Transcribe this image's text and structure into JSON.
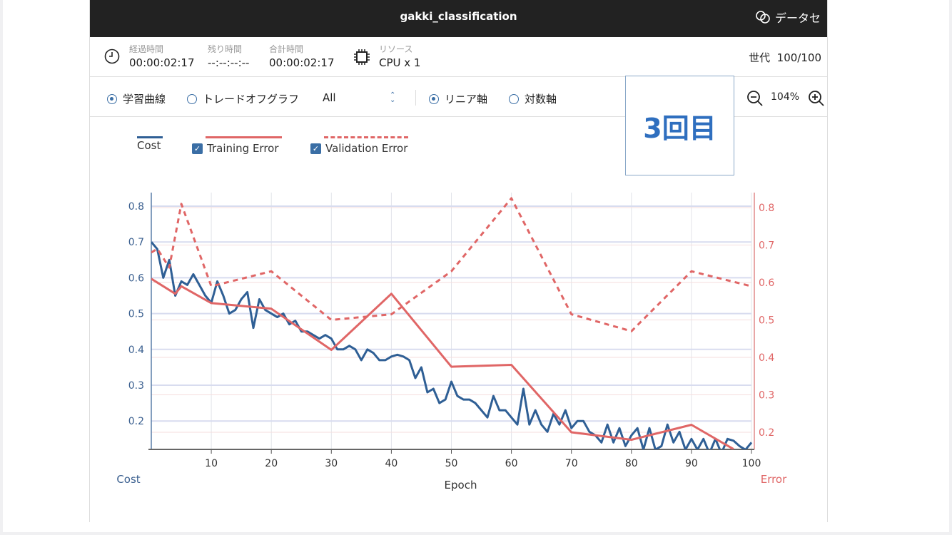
{
  "window": {
    "title": "gakki_classification",
    "dataset_label": "データセ"
  },
  "status": {
    "elapsed_label": "経過時間",
    "elapsed": "00:00:02:17",
    "remaining_label": "残り時間",
    "remaining": "--:--:--:--",
    "total_label": "合計時間",
    "total": "00:00:02:17",
    "resource_label": "リソース",
    "resource": "CPU x 1",
    "generation_label": "世代",
    "generation": "100/100"
  },
  "toolbar": {
    "learning_curve": "学習曲線",
    "tradeoff": "トレードオフグラフ",
    "select_value": "All",
    "linear": "リニア軸",
    "log": "対数軸",
    "zoom": "104%"
  },
  "badge": "3回目",
  "legend": {
    "cost": "Cost",
    "training": "Training Error",
    "validation": "Validation Error"
  },
  "colors": {
    "cost": "#2f5f95",
    "error": "#e06666",
    "accent": "#3a6ea5"
  },
  "chart_data": {
    "type": "line",
    "xlabel": "Epoch",
    "ylabel_left": "Cost",
    "ylabel_right": "Error",
    "xlim": [
      0,
      100
    ],
    "ylim_left": [
      0.12,
      0.82
    ],
    "ylim_right": [
      0.155,
      0.83
    ],
    "xticks": [
      10,
      20,
      30,
      40,
      50,
      60,
      70,
      80,
      90,
      100
    ],
    "yticks_left": [
      0.2,
      0.3,
      0.4,
      0.5,
      0.6,
      0.7,
      0.8
    ],
    "yticks_right": [
      0.2,
      0.3,
      0.4,
      0.5,
      0.6,
      0.7,
      0.8
    ],
    "series": [
      {
        "name": "Cost",
        "axis": "left",
        "x": [
          0,
          1,
          2,
          3,
          4,
          5,
          6,
          7,
          8,
          9,
          10,
          11,
          12,
          13,
          14,
          15,
          16,
          17,
          18,
          19,
          20,
          21,
          22,
          23,
          24,
          25,
          26,
          27,
          28,
          29,
          30,
          31,
          32,
          33,
          34,
          35,
          36,
          37,
          38,
          39,
          40,
          41,
          42,
          43,
          44,
          45,
          46,
          47,
          48,
          49,
          50,
          51,
          52,
          53,
          54,
          55,
          56,
          57,
          58,
          59,
          60,
          61,
          62,
          63,
          64,
          65,
          66,
          67,
          68,
          69,
          70,
          71,
          72,
          73,
          74,
          75,
          76,
          77,
          78,
          79,
          80,
          81,
          82,
          83,
          84,
          85,
          86,
          87,
          88,
          89,
          90,
          91,
          92,
          93,
          94,
          95,
          96,
          97,
          98,
          99,
          100
        ],
        "values": [
          0.7,
          0.68,
          0.6,
          0.65,
          0.55,
          0.59,
          0.58,
          0.61,
          0.58,
          0.55,
          0.53,
          0.59,
          0.55,
          0.5,
          0.51,
          0.54,
          0.56,
          0.46,
          0.54,
          0.51,
          0.5,
          0.49,
          0.5,
          0.47,
          0.48,
          0.45,
          0.45,
          0.44,
          0.43,
          0.44,
          0.43,
          0.4,
          0.4,
          0.41,
          0.4,
          0.37,
          0.4,
          0.39,
          0.37,
          0.37,
          0.38,
          0.385,
          0.38,
          0.37,
          0.32,
          0.35,
          0.28,
          0.29,
          0.25,
          0.26,
          0.31,
          0.27,
          0.26,
          0.26,
          0.25,
          0.23,
          0.21,
          0.27,
          0.23,
          0.23,
          0.21,
          0.19,
          0.29,
          0.19,
          0.23,
          0.19,
          0.17,
          0.22,
          0.19,
          0.23,
          0.18,
          0.2,
          0.2,
          0.17,
          0.16,
          0.14,
          0.19,
          0.14,
          0.18,
          0.13,
          0.16,
          0.18,
          0.12,
          0.18,
          0.12,
          0.13,
          0.19,
          0.14,
          0.17,
          0.12,
          0.15,
          0.12,
          0.15,
          0.11,
          0.15,
          0.11,
          0.15,
          0.145,
          0.13,
          0.12,
          0.14
        ]
      },
      {
        "name": "Training Error",
        "axis": "right",
        "x": [
          0,
          4,
          5,
          10,
          20,
          30,
          40,
          50,
          60,
          70,
          80,
          90,
          97
        ],
        "values": [
          0.61,
          0.57,
          0.59,
          0.545,
          0.53,
          0.42,
          0.57,
          0.375,
          0.38,
          0.2,
          0.18,
          0.22,
          0.155
        ]
      },
      {
        "name": "Validation Error",
        "axis": "right",
        "dashed": true,
        "x": [
          0,
          1,
          3,
          5,
          10,
          20,
          30,
          40,
          50,
          60,
          70,
          80,
          90,
          100
        ],
        "values": [
          0.68,
          0.69,
          0.64,
          0.81,
          0.59,
          0.63,
          0.5,
          0.515,
          0.63,
          0.825,
          0.515,
          0.47,
          0.63,
          0.59
        ]
      }
    ]
  }
}
